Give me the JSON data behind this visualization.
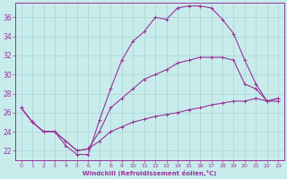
{
  "xlabel": "Windchill (Refroidissement éolien,°C)",
  "bg_color": "#c8ecec",
  "grid_color": "#b0d8d8",
  "line_color": "#993399",
  "xlim": [
    -0.5,
    23.5
  ],
  "ylim": [
    21.0,
    37.5
  ],
  "xticks": [
    0,
    1,
    2,
    3,
    4,
    5,
    6,
    7,
    8,
    9,
    10,
    11,
    12,
    13,
    14,
    15,
    16,
    17,
    18,
    19,
    20,
    21,
    22,
    23
  ],
  "yticks": [
    22,
    24,
    26,
    28,
    30,
    32,
    34,
    36
  ],
  "line1_x": [
    0,
    1,
    2,
    3,
    4,
    5,
    6,
    7,
    8,
    9,
    10,
    11,
    12,
    13,
    14,
    15,
    16,
    17,
    18,
    19,
    20,
    21,
    22,
    23
  ],
  "line1_y": [
    26.5,
    25.0,
    24.0,
    24.0,
    22.5,
    21.6,
    21.6,
    25.2,
    28.5,
    31.5,
    33.5,
    34.5,
    36.0,
    35.8,
    37.0,
    37.2,
    37.2,
    37.0,
    35.8,
    34.3,
    31.5,
    29.0,
    27.2,
    27.2
  ],
  "line2_x": [
    0,
    1,
    2,
    3,
    4,
    5,
    6,
    7,
    8,
    9,
    10,
    11,
    12,
    13,
    14,
    15,
    16,
    17,
    18,
    19,
    20,
    21,
    22,
    23
  ],
  "line2_y": [
    26.5,
    25.0,
    24.0,
    24.0,
    23.0,
    22.0,
    22.2,
    23.0,
    24.0,
    24.5,
    25.0,
    25.3,
    25.6,
    25.8,
    26.0,
    26.3,
    26.5,
    26.8,
    27.0,
    27.2,
    27.2,
    27.5,
    27.2,
    27.5
  ],
  "line3_x": [
    0,
    1,
    2,
    3,
    4,
    5,
    6,
    7,
    8,
    9,
    10,
    11,
    12,
    13,
    14,
    15,
    16,
    17,
    18,
    19,
    20,
    21,
    22,
    23
  ],
  "line3_y": [
    26.5,
    25.0,
    24.0,
    24.0,
    23.0,
    22.0,
    22.2,
    24.0,
    26.5,
    27.5,
    28.5,
    29.5,
    30.0,
    30.5,
    31.2,
    31.5,
    31.8,
    31.8,
    31.8,
    31.5,
    29.0,
    28.5,
    27.2,
    27.5
  ]
}
